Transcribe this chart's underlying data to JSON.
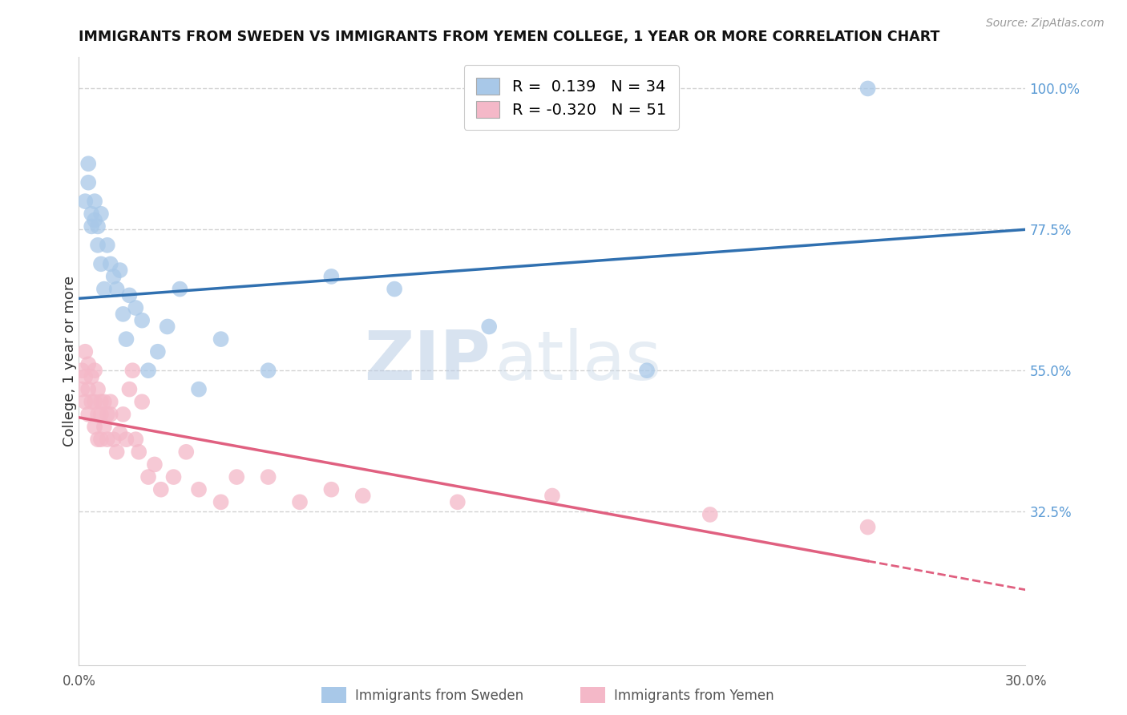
{
  "title": "IMMIGRANTS FROM SWEDEN VS IMMIGRANTS FROM YEMEN COLLEGE, 1 YEAR OR MORE CORRELATION CHART",
  "source": "Source: ZipAtlas.com",
  "ylabel": "College, 1 year or more",
  "x_min": 0.0,
  "x_max": 0.3,
  "y_min": 0.08,
  "y_max": 1.05,
  "right_yticks": [
    1.0,
    0.775,
    0.55,
    0.325
  ],
  "right_yticklabels": [
    "100.0%",
    "77.5%",
    "55.0%",
    "32.5%"
  ],
  "blue_color": "#a8c8e8",
  "pink_color": "#f4b8c8",
  "blue_line_color": "#3070b0",
  "pink_line_color": "#e06080",
  "blue_r": 0.139,
  "blue_n": 34,
  "pink_r": -0.32,
  "pink_n": 51,
  "sweden_x": [
    0.002,
    0.003,
    0.003,
    0.004,
    0.004,
    0.005,
    0.005,
    0.006,
    0.006,
    0.007,
    0.007,
    0.008,
    0.009,
    0.01,
    0.011,
    0.012,
    0.013,
    0.014,
    0.015,
    0.016,
    0.018,
    0.02,
    0.022,
    0.025,
    0.028,
    0.032,
    0.038,
    0.045,
    0.06,
    0.08,
    0.1,
    0.13,
    0.18,
    0.25
  ],
  "sweden_y": [
    0.82,
    0.88,
    0.85,
    0.8,
    0.78,
    0.82,
    0.79,
    0.78,
    0.75,
    0.8,
    0.72,
    0.68,
    0.75,
    0.72,
    0.7,
    0.68,
    0.71,
    0.64,
    0.6,
    0.67,
    0.65,
    0.63,
    0.55,
    0.58,
    0.62,
    0.68,
    0.52,
    0.6,
    0.55,
    0.7,
    0.68,
    0.62,
    0.55,
    1.0
  ],
  "yemen_x": [
    0.001,
    0.001,
    0.002,
    0.002,
    0.002,
    0.003,
    0.003,
    0.003,
    0.004,
    0.004,
    0.005,
    0.005,
    0.005,
    0.006,
    0.006,
    0.006,
    0.007,
    0.007,
    0.007,
    0.008,
    0.008,
    0.009,
    0.009,
    0.01,
    0.01,
    0.011,
    0.012,
    0.013,
    0.014,
    0.015,
    0.016,
    0.017,
    0.018,
    0.019,
    0.02,
    0.022,
    0.024,
    0.026,
    0.03,
    0.034,
    0.038,
    0.045,
    0.05,
    0.06,
    0.07,
    0.08,
    0.09,
    0.12,
    0.15,
    0.2,
    0.25
  ],
  "yemen_y": [
    0.55,
    0.52,
    0.58,
    0.54,
    0.5,
    0.56,
    0.52,
    0.48,
    0.54,
    0.5,
    0.55,
    0.5,
    0.46,
    0.52,
    0.48,
    0.44,
    0.5,
    0.48,
    0.44,
    0.5,
    0.46,
    0.48,
    0.44,
    0.5,
    0.48,
    0.44,
    0.42,
    0.45,
    0.48,
    0.44,
    0.52,
    0.55,
    0.44,
    0.42,
    0.5,
    0.38,
    0.4,
    0.36,
    0.38,
    0.42,
    0.36,
    0.34,
    0.38,
    0.38,
    0.34,
    0.36,
    0.35,
    0.34,
    0.35,
    0.32,
    0.3
  ],
  "watermark_zip": "ZIP",
  "watermark_atlas": "atlas",
  "background_color": "#ffffff",
  "grid_color": "#c8c8c8"
}
